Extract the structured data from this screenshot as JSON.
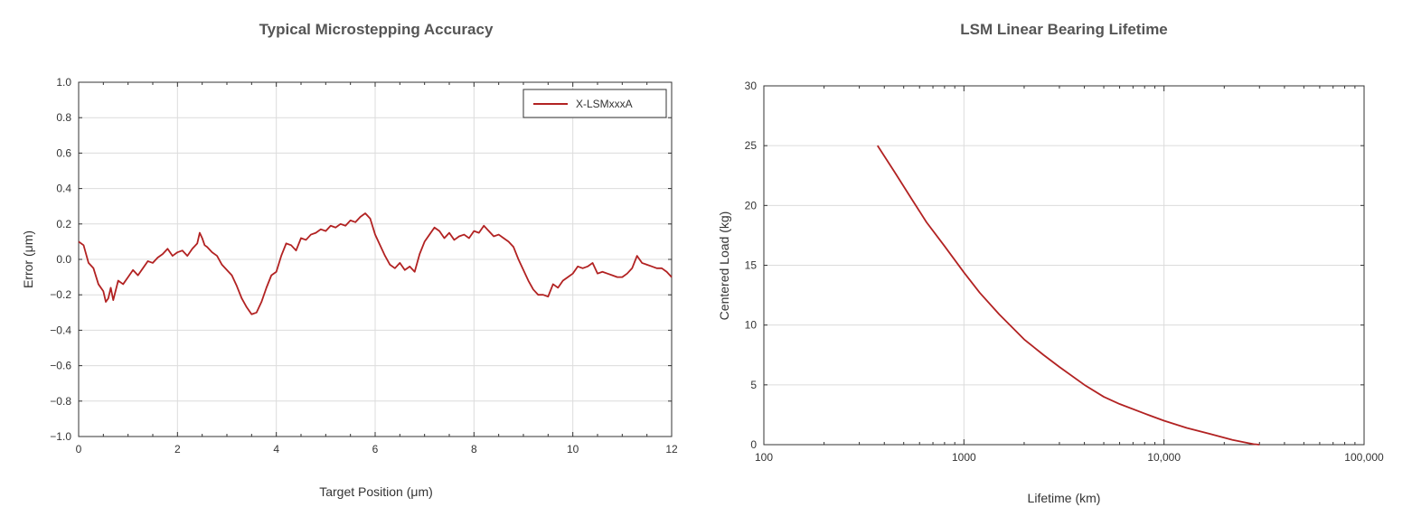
{
  "chart_data": [
    {
      "id": "accuracy",
      "type": "line",
      "title": "Typical Microstepping Accuracy",
      "xlabel": "Target Position (μm)",
      "ylabel": "Error (μm)",
      "xlim": [
        0,
        12
      ],
      "ylim": [
        -1.0,
        1.0
      ],
      "x_ticks": [
        0,
        2,
        4,
        6,
        8,
        10,
        12
      ],
      "x_tick_labels": [
        "0",
        "2",
        "4",
        "6",
        "8",
        "10",
        "12"
      ],
      "y_ticks": [
        -1.0,
        -0.8,
        -0.6,
        -0.4,
        -0.2,
        0.0,
        0.2,
        0.4,
        0.6,
        0.8,
        1.0
      ],
      "y_tick_labels": [
        "−1.0",
        "−0.8",
        "−0.6",
        "−0.4",
        "−0.2",
        "0.0",
        "0.2",
        "0.4",
        "0.6",
        "0.8",
        "1.0"
      ],
      "grid": true,
      "legend_position": "top-right",
      "series": [
        {
          "name": "X-LSMxxxA",
          "color": "#b22222",
          "x": [
            0,
            0.1,
            0.2,
            0.3,
            0.4,
            0.5,
            0.55,
            0.6,
            0.65,
            0.7,
            0.8,
            0.9,
            1.0,
            1.1,
            1.2,
            1.3,
            1.4,
            1.5,
            1.6,
            1.7,
            1.8,
            1.9,
            2.0,
            2.1,
            2.2,
            2.3,
            2.4,
            2.45,
            2.5,
            2.55,
            2.6,
            2.7,
            2.8,
            2.9,
            3.0,
            3.1,
            3.2,
            3.3,
            3.4,
            3.5,
            3.6,
            3.7,
            3.8,
            3.9,
            4.0,
            4.1,
            4.2,
            4.3,
            4.4,
            4.5,
            4.6,
            4.7,
            4.8,
            4.9,
            5.0,
            5.1,
            5.2,
            5.3,
            5.4,
            5.5,
            5.6,
            5.7,
            5.8,
            5.9,
            6.0,
            6.1,
            6.2,
            6.3,
            6.4,
            6.5,
            6.6,
            6.7,
            6.8,
            6.9,
            7.0,
            7.1,
            7.2,
            7.3,
            7.4,
            7.5,
            7.6,
            7.7,
            7.8,
            7.9,
            8.0,
            8.1,
            8.2,
            8.3,
            8.4,
            8.5,
            8.6,
            8.7,
            8.8,
            8.9,
            9.0,
            9.1,
            9.2,
            9.3,
            9.4,
            9.5,
            9.6,
            9.7,
            9.8,
            9.9,
            10.0,
            10.1,
            10.2,
            10.3,
            10.4,
            10.5,
            10.6,
            10.7,
            10.8,
            10.9,
            11.0,
            11.1,
            11.2,
            11.3,
            11.4,
            11.5,
            11.6,
            11.7,
            11.8,
            11.9,
            12.0
          ],
          "y": [
            0.1,
            0.08,
            -0.02,
            -0.05,
            -0.14,
            -0.18,
            -0.24,
            -0.22,
            -0.16,
            -0.23,
            -0.12,
            -0.14,
            -0.1,
            -0.06,
            -0.09,
            -0.05,
            -0.01,
            -0.02,
            0.01,
            0.03,
            0.06,
            0.02,
            0.04,
            0.05,
            0.02,
            0.06,
            0.09,
            0.15,
            0.12,
            0.08,
            0.07,
            0.04,
            0.02,
            -0.03,
            -0.06,
            -0.09,
            -0.15,
            -0.22,
            -0.27,
            -0.31,
            -0.3,
            -0.24,
            -0.16,
            -0.09,
            -0.07,
            0.02,
            0.09,
            0.08,
            0.05,
            0.12,
            0.11,
            0.14,
            0.15,
            0.17,
            0.16,
            0.19,
            0.18,
            0.2,
            0.19,
            0.22,
            0.21,
            0.24,
            0.26,
            0.23,
            0.14,
            0.08,
            0.02,
            -0.03,
            -0.05,
            -0.02,
            -0.06,
            -0.04,
            -0.07,
            0.03,
            0.1,
            0.14,
            0.18,
            0.16,
            0.12,
            0.15,
            0.11,
            0.13,
            0.14,
            0.12,
            0.16,
            0.15,
            0.19,
            0.16,
            0.13,
            0.14,
            0.12,
            0.1,
            0.07,
            0.0,
            -0.06,
            -0.12,
            -0.17,
            -0.2,
            -0.2,
            -0.21,
            -0.14,
            -0.16,
            -0.12,
            -0.1,
            -0.08,
            -0.04,
            -0.05,
            -0.04,
            -0.02,
            -0.08,
            -0.07,
            -0.08,
            -0.09,
            -0.1,
            -0.1,
            -0.08,
            -0.05,
            0.02,
            -0.02,
            -0.03,
            -0.04,
            -0.05,
            -0.05,
            -0.07,
            -0.1
          ]
        }
      ]
    },
    {
      "id": "lifetime",
      "type": "line",
      "title": "LSM Linear Bearing Lifetime",
      "xlabel": "Lifetime (km)",
      "ylabel": "Centered Load (kg)",
      "x_scale": "log",
      "xlim": [
        100,
        100000
      ],
      "ylim": [
        0,
        30
      ],
      "x_ticks": [
        100,
        1000,
        10000,
        100000
      ],
      "x_tick_labels": [
        "100",
        "1000",
        "10,000",
        "100,000"
      ],
      "y_ticks": [
        0,
        5,
        10,
        15,
        20,
        25,
        30
      ],
      "y_tick_labels": [
        "0",
        "5",
        "10",
        "15",
        "20",
        "25",
        "30"
      ],
      "grid": true,
      "series": [
        {
          "color": "#b22222",
          "x": [
            370,
            450,
            550,
            650,
            800,
            1000,
            1200,
            1500,
            2000,
            2500,
            3000,
            4000,
            5000,
            6000,
            8000,
            10000,
            13000,
            17000,
            22000,
            26000,
            28000,
            30000
          ],
          "y": [
            25.0,
            22.8,
            20.5,
            18.6,
            16.6,
            14.4,
            12.7,
            10.9,
            8.8,
            7.5,
            6.5,
            5.0,
            4.0,
            3.4,
            2.6,
            2.0,
            1.4,
            0.9,
            0.4,
            0.15,
            0.05,
            0.0
          ]
        }
      ]
    }
  ]
}
